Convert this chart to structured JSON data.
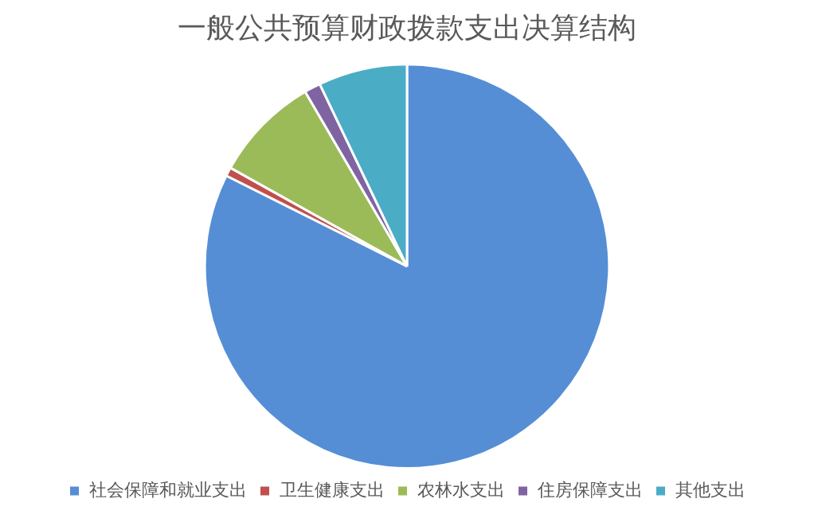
{
  "chart_data": {
    "type": "pie",
    "title": "一般公共预算财政拨款支出决算结构",
    "categories": [
      "社会保障和就业支出",
      "卫生健康支出",
      "农林水支出",
      "住房保障支出",
      "其他支出"
    ],
    "values": [
      82.4,
      0.7,
      8.5,
      1.3,
      7.1
    ],
    "colors": [
      "#558ed5",
      "#c0504d",
      "#9bbb59",
      "#8064a2",
      "#4bacc6"
    ],
    "legend": "bottom"
  }
}
